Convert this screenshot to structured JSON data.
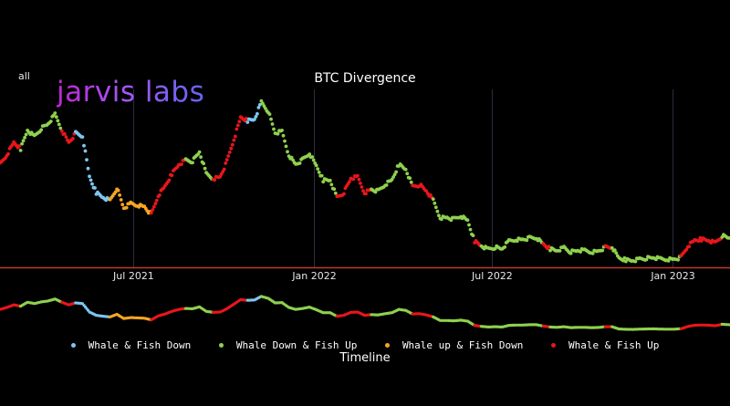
{
  "range_selector": {
    "label": "all"
  },
  "logo": {
    "text": "jarvis labs"
  },
  "chart_data": {
    "type": "scatter",
    "title": "BTC Divergence",
    "xlabel": "Timeline",
    "ylabel": "",
    "x_range": [
      "2021-02-15",
      "2023-02-28"
    ],
    "y_range": [
      15000,
      71000
    ],
    "x_ticks": [
      {
        "date": "2021-07-01",
        "label": "Jul 2021"
      },
      {
        "date": "2022-01-01",
        "label": "Jan 2022"
      },
      {
        "date": "2022-07-01",
        "label": "Jul 2022"
      },
      {
        "date": "2023-01-01",
        "label": "Jan 2023"
      }
    ],
    "grid": "vertical",
    "legend": "bottom",
    "categories": [
      {
        "key": "wfd",
        "name": "Whale & Fish Down",
        "color": "#7cc7f0"
      },
      {
        "key": "wdfu",
        "name": "Whale Down & Fish Up",
        "color": "#8fd14f"
      },
      {
        "key": "wufd",
        "name": "Whale up & Fish Down",
        "color": "#f5a623"
      },
      {
        "key": "wfu",
        "name": "Whale & Fish Up",
        "color": "#e8161b"
      }
    ],
    "series": [
      {
        "name": "BTC",
        "points": [
          [
            "2021-02-15",
            47000,
            "wfu"
          ],
          [
            "2021-02-22",
            50000,
            "wfu"
          ],
          [
            "2021-03-01",
            54000,
            "wfu"
          ],
          [
            "2021-03-08",
            52000,
            "wdfu"
          ],
          [
            "2021-03-15",
            58000,
            "wdfu"
          ],
          [
            "2021-03-22",
            56000,
            "wdfu"
          ],
          [
            "2021-03-29",
            58500,
            "wdfu"
          ],
          [
            "2021-04-05",
            60000,
            "wdfu"
          ],
          [
            "2021-04-12",
            63000,
            "wdfu"
          ],
          [
            "2021-04-19",
            58000,
            "wfu"
          ],
          [
            "2021-04-26",
            54000,
            "wfu"
          ],
          [
            "2021-05-03",
            57000,
            "wfd"
          ],
          [
            "2021-05-10",
            56000,
            "wfd"
          ],
          [
            "2021-05-17",
            43000,
            "wfd"
          ],
          [
            "2021-05-24",
            38000,
            "wfd"
          ],
          [
            "2021-05-31",
            36500,
            "wfd"
          ],
          [
            "2021-06-07",
            35500,
            "wufd"
          ],
          [
            "2021-06-14",
            39500,
            "wufd"
          ],
          [
            "2021-06-21",
            33000,
            "wufd"
          ],
          [
            "2021-06-28",
            34500,
            "wufd"
          ],
          [
            "2021-07-05",
            34000,
            "wufd"
          ],
          [
            "2021-07-12",
            33500,
            "wufd"
          ],
          [
            "2021-07-19",
            31000,
            "wfu"
          ],
          [
            "2021-07-26",
            37000,
            "wfu"
          ],
          [
            "2021-08-02",
            40000,
            "wfu"
          ],
          [
            "2021-08-09",
            44000,
            "wfu"
          ],
          [
            "2021-08-16",
            47000,
            "wfu"
          ],
          [
            "2021-08-23",
            48500,
            "wdfu"
          ],
          [
            "2021-08-30",
            48000,
            "wdfu"
          ],
          [
            "2021-09-06",
            51000,
            "wdfu"
          ],
          [
            "2021-09-13",
            44000,
            "wdfu"
          ],
          [
            "2021-09-20",
            42500,
            "wfu"
          ],
          [
            "2021-09-27",
            43000,
            "wfu"
          ],
          [
            "2021-10-04",
            48000,
            "wfu"
          ],
          [
            "2021-10-11",
            55000,
            "wfu"
          ],
          [
            "2021-10-18",
            62000,
            "wfu"
          ],
          [
            "2021-10-25",
            61000,
            "wfd"
          ],
          [
            "2021-11-01",
            61500,
            "wfd"
          ],
          [
            "2021-11-08",
            67000,
            "wdfu"
          ],
          [
            "2021-11-15",
            64000,
            "wdfu"
          ],
          [
            "2021-11-22",
            57000,
            "wdfu"
          ],
          [
            "2021-11-29",
            57500,
            "wdfu"
          ],
          [
            "2021-12-06",
            50000,
            "wdfu"
          ],
          [
            "2021-12-13",
            47000,
            "wdfu"
          ],
          [
            "2021-12-20",
            48500,
            "wdfu"
          ],
          [
            "2021-12-27",
            50500,
            "wdfu"
          ],
          [
            "2022-01-03",
            46500,
            "wdfu"
          ],
          [
            "2022-01-10",
            42000,
            "wdfu"
          ],
          [
            "2022-01-17",
            42000,
            "wdfu"
          ],
          [
            "2022-01-24",
            36500,
            "wfu"
          ],
          [
            "2022-01-31",
            38000,
            "wfu"
          ],
          [
            "2022-02-07",
            42500,
            "wfu"
          ],
          [
            "2022-02-14",
            43000,
            "wfu"
          ],
          [
            "2022-02-21",
            38000,
            "wfu"
          ],
          [
            "2022-02-28",
            39000,
            "wdfu"
          ],
          [
            "2022-03-07",
            38500,
            "wdfu"
          ],
          [
            "2022-03-14",
            40500,
            "wdfu"
          ],
          [
            "2022-03-21",
            42000,
            "wdfu"
          ],
          [
            "2022-03-28",
            47000,
            "wdfu"
          ],
          [
            "2022-04-04",
            45500,
            "wdfu"
          ],
          [
            "2022-04-11",
            40000,
            "wfu"
          ],
          [
            "2022-04-18",
            40500,
            "wfu"
          ],
          [
            "2022-04-25",
            38500,
            "wfu"
          ],
          [
            "2022-05-02",
            35500,
            "wdfu"
          ],
          [
            "2022-05-09",
            30000,
            "wdfu"
          ],
          [
            "2022-05-16",
            30000,
            "wdfu"
          ],
          [
            "2022-05-23",
            29500,
            "wdfu"
          ],
          [
            "2022-05-30",
            30500,
            "wdfu"
          ],
          [
            "2022-06-06",
            29000,
            "wdfu"
          ],
          [
            "2022-06-13",
            22500,
            "wfu"
          ],
          [
            "2022-06-20",
            21000,
            "wdfu"
          ],
          [
            "2022-06-27",
            20000,
            "wdfu"
          ],
          [
            "2022-07-04",
            20500,
            "wdfu"
          ],
          [
            "2022-07-11",
            20000,
            "wdfu"
          ],
          [
            "2022-07-18",
            22500,
            "wdfu"
          ],
          [
            "2022-07-25",
            23000,
            "wdfu"
          ],
          [
            "2022-08-01",
            23000,
            "wdfu"
          ],
          [
            "2022-08-08",
            23500,
            "wdfu"
          ],
          [
            "2022-08-15",
            23500,
            "wdfu"
          ],
          [
            "2022-08-22",
            21500,
            "wfu"
          ],
          [
            "2022-08-29",
            20000,
            "wdfu"
          ],
          [
            "2022-09-05",
            19500,
            "wdfu"
          ],
          [
            "2022-09-12",
            20500,
            "wdfu"
          ],
          [
            "2022-09-19",
            19000,
            "wdfu"
          ],
          [
            "2022-09-26",
            19500,
            "wdfu"
          ],
          [
            "2022-10-03",
            19500,
            "wdfu"
          ],
          [
            "2022-10-10",
            19000,
            "wdfu"
          ],
          [
            "2022-10-17",
            19300,
            "wdfu"
          ],
          [
            "2022-10-24",
            20500,
            "wfu"
          ],
          [
            "2022-10-31",
            20500,
            "wdfu"
          ],
          [
            "2022-11-07",
            17000,
            "wdfu"
          ],
          [
            "2022-11-14",
            16500,
            "wdfu"
          ],
          [
            "2022-11-21",
            16300,
            "wdfu"
          ],
          [
            "2022-11-28",
            16800,
            "wdfu"
          ],
          [
            "2022-12-05",
            17000,
            "wdfu"
          ],
          [
            "2022-12-12",
            17200,
            "wdfu"
          ],
          [
            "2022-12-19",
            16800,
            "wdfu"
          ],
          [
            "2022-12-26",
            16700,
            "wdfu"
          ],
          [
            "2023-01-02",
            16700,
            "wdfu"
          ],
          [
            "2023-01-09",
            17300,
            "wfu"
          ],
          [
            "2023-01-16",
            20800,
            "wfu"
          ],
          [
            "2023-01-23",
            22700,
            "wfu"
          ],
          [
            "2023-01-30",
            23100,
            "wfu"
          ],
          [
            "2023-02-06",
            22800,
            "wfu"
          ],
          [
            "2023-02-13",
            22000,
            "wfu"
          ],
          [
            "2023-02-20",
            24200,
            "wdfu"
          ],
          [
            "2023-02-27",
            23500,
            "wdfu"
          ]
        ]
      }
    ]
  }
}
